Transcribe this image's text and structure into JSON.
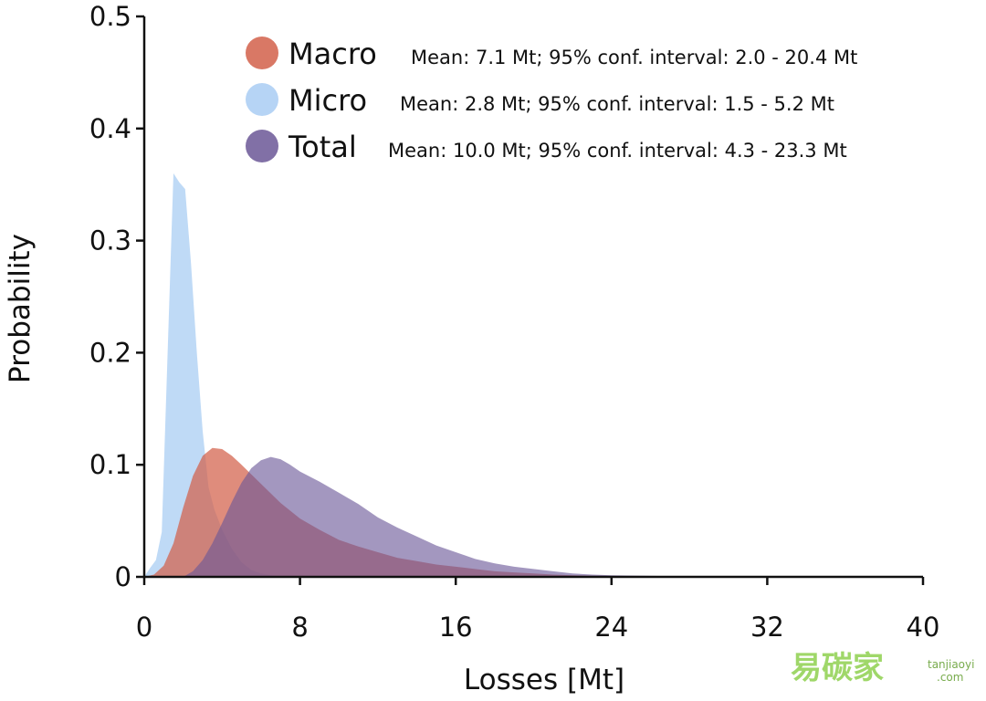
{
  "chart_data": {
    "type": "area",
    "title": "",
    "xlabel": "Losses [Mt]",
    "ylabel": "Probability",
    "xlim": [
      0,
      40
    ],
    "ylim": [
      0,
      0.5
    ],
    "x_ticks": [
      0,
      8,
      16,
      24,
      32,
      40
    ],
    "y_ticks": [
      0,
      0.1,
      0.2,
      0.3,
      0.4,
      0.5
    ],
    "y_tick_labels": [
      "0",
      "0.1",
      "0.2",
      "0.3",
      "0.4",
      "0.5"
    ],
    "grid": false,
    "legend_position": "top-right",
    "series": [
      {
        "name": "Macro",
        "stats": "Mean: 7.1 Mt; 95% conf. interval: 2.0 - 20.4 Mt",
        "color": "#d2604a",
        "x": [
          0,
          0.5,
          1,
          1.5,
          2,
          2.5,
          3,
          3.5,
          4,
          4.5,
          5,
          6,
          7,
          8,
          9,
          10,
          11,
          12,
          13,
          14,
          15,
          16,
          17,
          18,
          19,
          20,
          21,
          22,
          23,
          24,
          26,
          28,
          30,
          32,
          34,
          36,
          38,
          40
        ],
        "values": [
          0,
          0.002,
          0.01,
          0.03,
          0.062,
          0.09,
          0.108,
          0.115,
          0.114,
          0.108,
          0.1,
          0.083,
          0.066,
          0.052,
          0.042,
          0.033,
          0.027,
          0.022,
          0.017,
          0.014,
          0.011,
          0.009,
          0.007,
          0.005,
          0.004,
          0.003,
          0.002,
          0.0015,
          0.001,
          0.0008,
          0.0004,
          0.0002,
          0.0001,
          0.0001,
          0,
          0,
          0,
          0
        ]
      },
      {
        "name": "Micro",
        "stats": "Mean: 2.8 Mt; 95% conf. interval: 1.5 - 5.2 Mt",
        "color": "#a9cdf3",
        "x": [
          0,
          0.3,
          0.6,
          0.9,
          1.2,
          1.5,
          1.8,
          2.1,
          2.4,
          2.7,
          3.0,
          3.3,
          3.6,
          4.0,
          4.5,
          5.0,
          5.5,
          6.0,
          6.5,
          7.0,
          8.0
        ],
        "values": [
          0,
          0.008,
          0.015,
          0.04,
          0.2,
          0.36,
          0.352,
          0.346,
          0.28,
          0.2,
          0.13,
          0.08,
          0.06,
          0.042,
          0.025,
          0.013,
          0.006,
          0.003,
          0.0015,
          0.0005,
          0
        ]
      },
      {
        "name": "Total",
        "stats": "Mean: 10.0 Mt; 95% conf. interval: 4.3 - 23.3 Mt",
        "color": "#6b5797",
        "x": [
          0,
          2,
          2.5,
          3,
          3.5,
          4,
          4.5,
          5,
          5.5,
          6,
          6.5,
          7,
          7.5,
          8,
          9,
          10,
          11,
          12,
          13,
          14,
          15,
          16,
          17,
          18,
          19,
          20,
          21,
          22,
          23,
          24,
          26,
          28,
          30,
          32,
          34,
          36,
          38,
          40
        ],
        "values": [
          0,
          0,
          0.005,
          0.015,
          0.03,
          0.048,
          0.067,
          0.084,
          0.097,
          0.104,
          0.107,
          0.105,
          0.1,
          0.094,
          0.085,
          0.075,
          0.065,
          0.053,
          0.044,
          0.036,
          0.028,
          0.022,
          0.016,
          0.012,
          0.009,
          0.007,
          0.005,
          0.003,
          0.002,
          0.0015,
          0.0009,
          0.0005,
          0.0003,
          0.0002,
          0.0001,
          0,
          0,
          0
        ]
      }
    ]
  },
  "watermark": {
    "text_cn": "易碳家",
    "text_en_1": "tanjiaoyi",
    "text_en_2": ".com"
  }
}
